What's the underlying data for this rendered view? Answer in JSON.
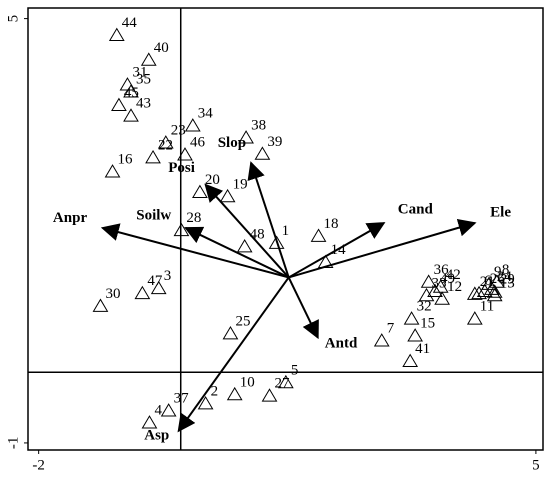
{
  "chart_data": {
    "type": "scatter",
    "xlim": [
      -2.15,
      5.1
    ],
    "ylim": [
      -1.1,
      5.15
    ],
    "xticks": [
      -2,
      5
    ],
    "yticks": [
      -1,
      5
    ],
    "vlines": [
      0
    ],
    "hlines": [
      0
    ],
    "color": "#000000",
    "points": {
      "labels": [
        "44",
        "40",
        "31",
        "35",
        "45",
        "43",
        "34",
        "23",
        "22",
        "46",
        "16",
        "38",
        "39",
        "20",
        "19",
        "28",
        "48",
        "1",
        "18",
        "14",
        "47",
        "3",
        "30",
        "25",
        "7",
        "32",
        "15",
        "41",
        "36",
        "33",
        "49",
        "42",
        "12",
        "21",
        "24",
        "26",
        "6",
        "29",
        "9",
        "8",
        "13",
        "11",
        "5",
        "27",
        "10",
        "2",
        "37",
        "4"
      ],
      "x": [
        -0.9,
        -0.45,
        -0.75,
        -0.7,
        -0.87,
        -0.7,
        0.17,
        -0.21,
        -0.39,
        0.06,
        -0.96,
        0.92,
        1.15,
        0.27,
        0.66,
        0.01,
        0.9,
        1.35,
        1.94,
        2.04,
        -0.54,
        -0.31,
        -1.13,
        0.7,
        2.83,
        3.25,
        3.3,
        3.23,
        3.49,
        3.46,
        3.58,
        3.66,
        3.68,
        4.14,
        4.38,
        4.28,
        4.2,
        4.42,
        4.34,
        4.45,
        4.42,
        4.14,
        1.48,
        1.25,
        0.76,
        0.35,
        -0.17,
        -0.44
      ],
      "y": [
        4.76,
        4.41,
        4.06,
        3.96,
        3.77,
        3.62,
        3.48,
        3.24,
        3.03,
        3.07,
        2.83,
        3.31,
        3.08,
        2.54,
        2.48,
        2.0,
        1.77,
        1.82,
        1.92,
        1.55,
        1.11,
        1.18,
        0.93,
        0.54,
        0.44,
        0.75,
        0.51,
        0.15,
        1.27,
        1.08,
        1.14,
        1.2,
        1.03,
        1.1,
        1.17,
        1.14,
        1.11,
        1.13,
        1.24,
        1.27,
        1.08,
        0.75,
        -0.15,
        -0.34,
        -0.32,
        -0.45,
        -0.55,
        -0.72
      ]
    },
    "arrows": {
      "origin": {
        "x": 1.52,
        "y": 1.34
      },
      "labels": [
        "Anpr",
        "Soilw",
        "Posi",
        "Slop",
        "Cand",
        "Ele",
        "Antd",
        "Asp"
      ],
      "x": [
        -1.1,
        0.07,
        0.35,
        0.99,
        2.86,
        4.14,
        1.93,
        -0.03
      ],
      "y": [
        2.04,
        2.04,
        2.65,
        2.96,
        2.11,
        2.11,
        0.49,
        -0.83
      ]
    }
  }
}
